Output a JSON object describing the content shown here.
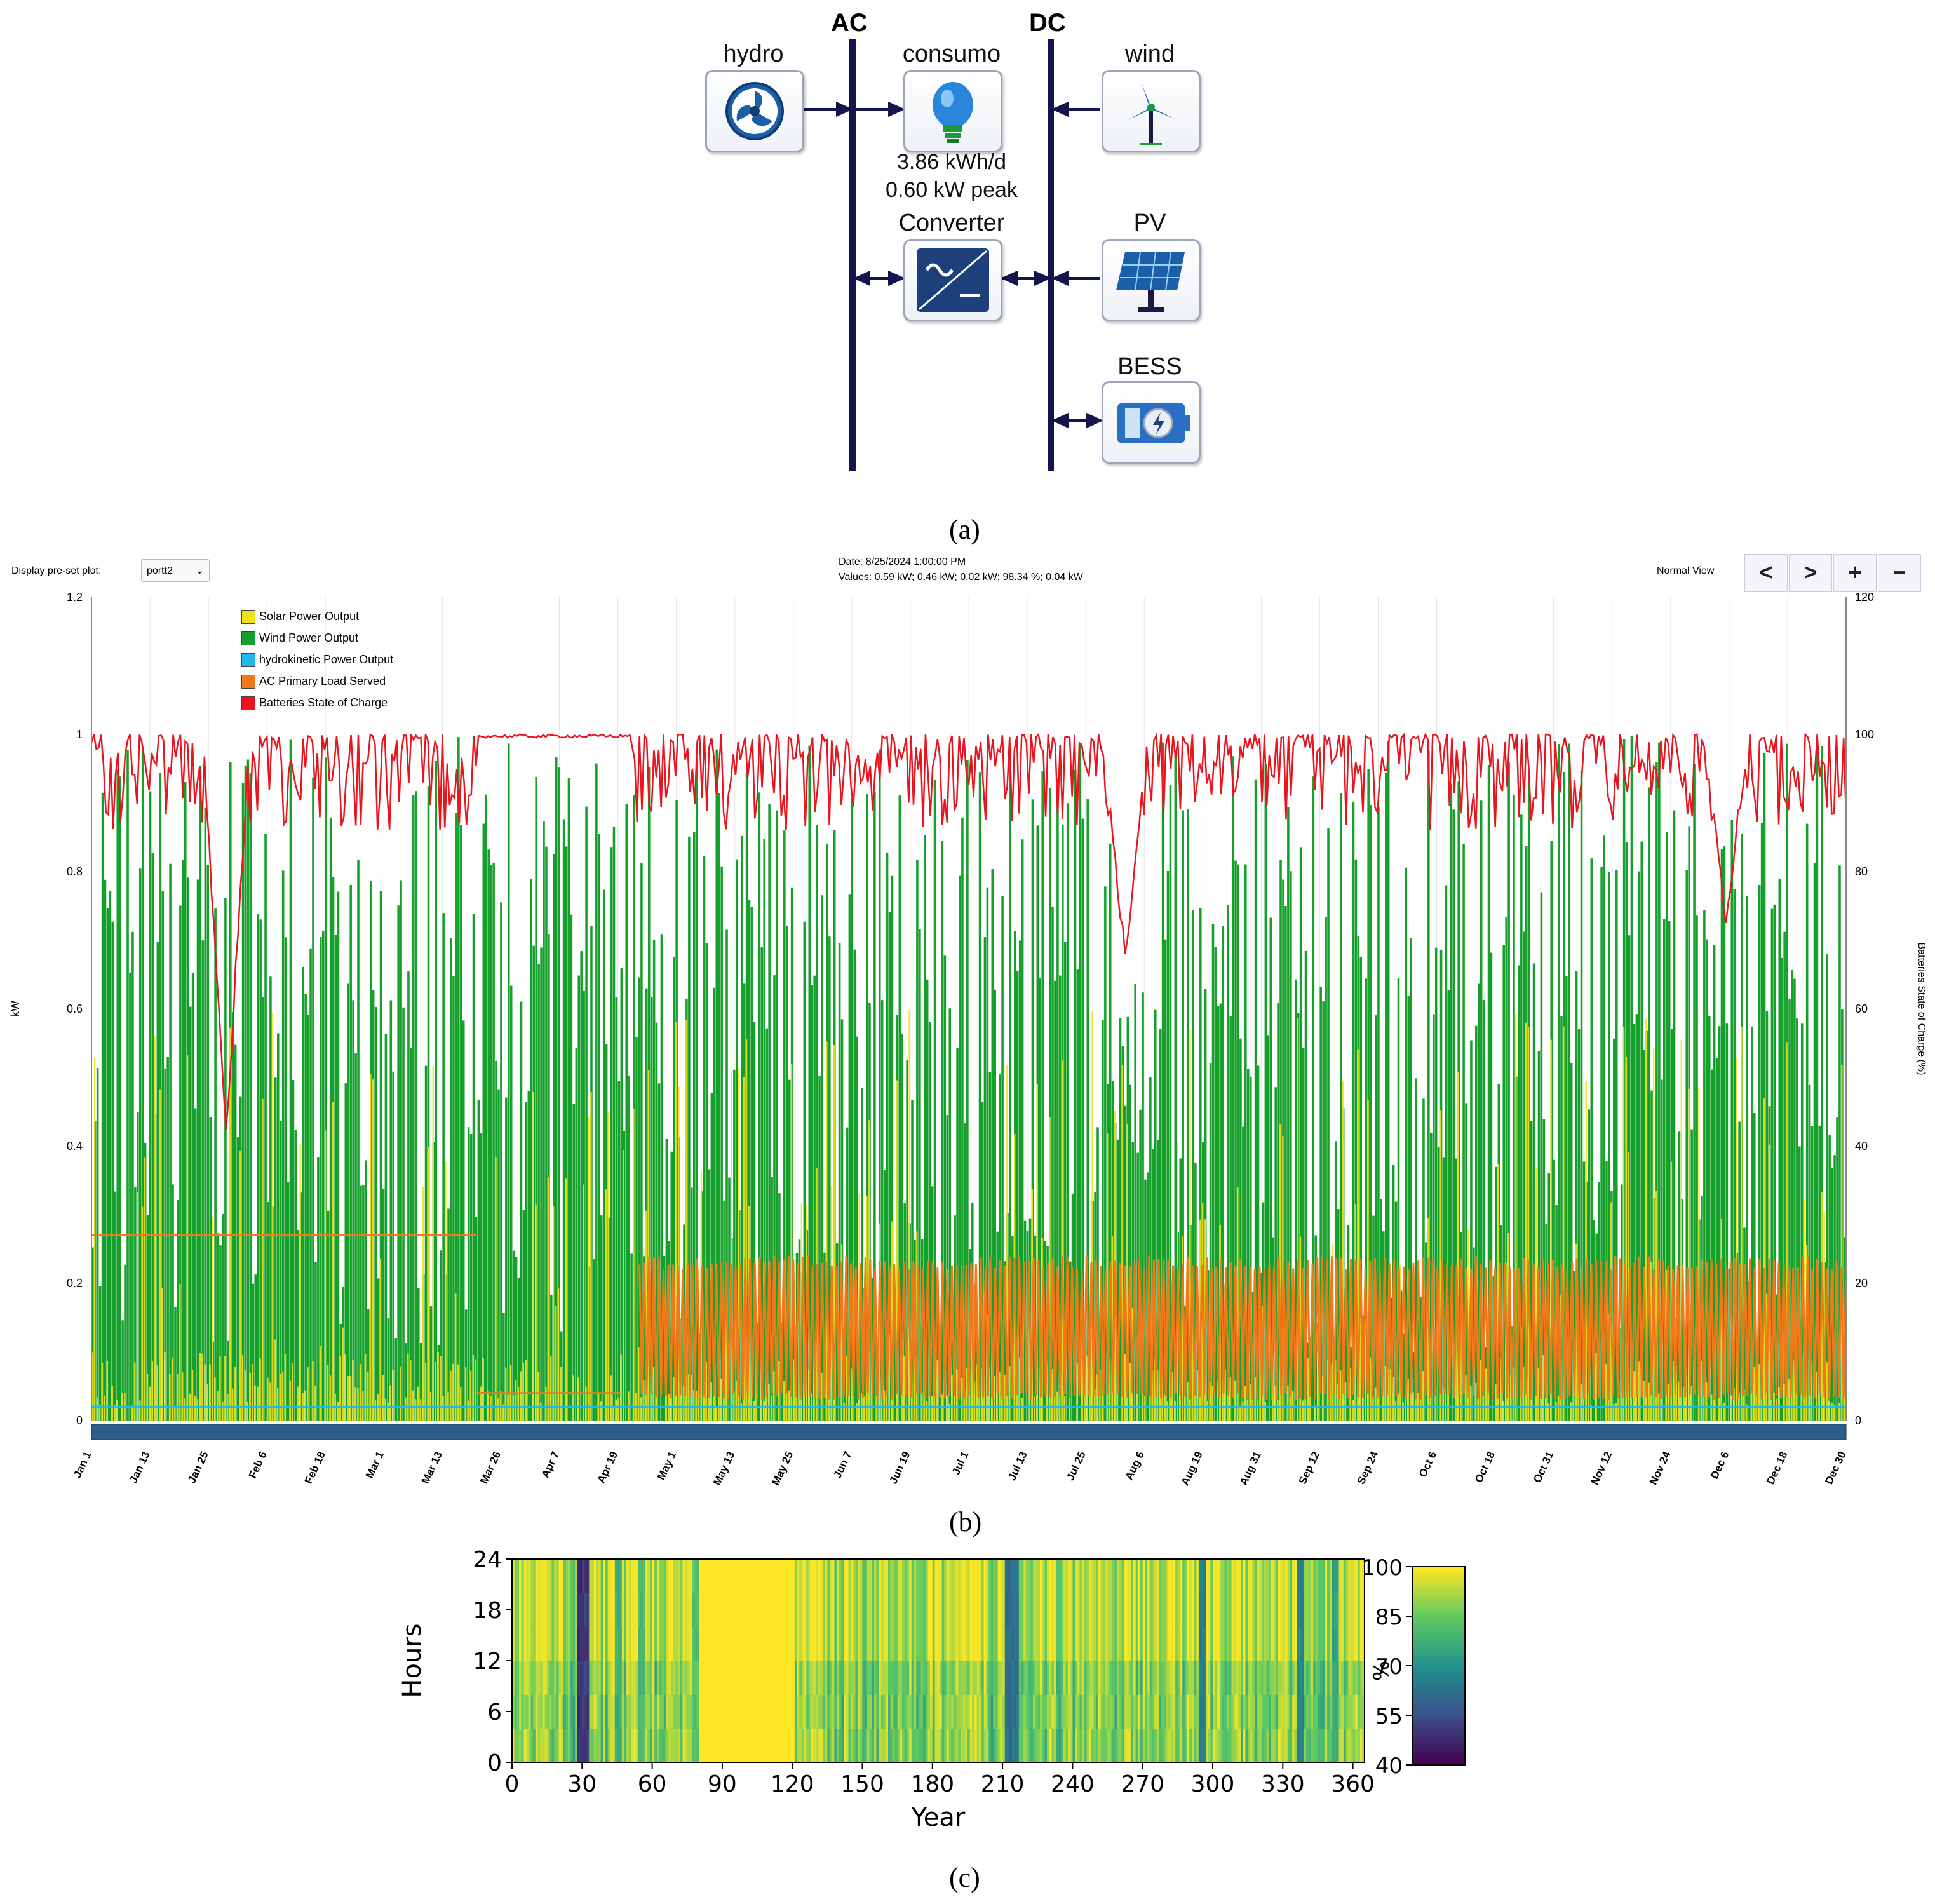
{
  "panel_a": {
    "bus_ac": "AC",
    "bus_dc": "DC",
    "components": {
      "hydro": "hydro",
      "consumo": "consumo",
      "wind": "wind",
      "converter": "Converter",
      "pv": "PV",
      "bess": "BESS"
    },
    "load_energy": "3.86 kWh/d",
    "load_peak": "0.60 kW peak",
    "caption": "(a)"
  },
  "panel_b": {
    "preset_label": "Display pre-set plot:",
    "preset_value": "portt2",
    "date_line": "Date: 8/25/2024 1:00:00 PM",
    "values_line": "Values: 0.59 kW; 0.46 kW; 0.02 kW; 98.34 %; 0.04 kW",
    "view_label": "Normal View",
    "buttons": [
      "<",
      ">",
      "+",
      "−"
    ],
    "caption": "(b)"
  },
  "panel_c": {
    "caption": "(c)"
  },
  "colors": {
    "solar": "#f2e21c",
    "wind": "#14a02a",
    "hydro": "#20b8e8",
    "load": "#f07a1a",
    "soc": "#e8141e",
    "bus": "#14144e",
    "scroll": "#2b5f8a"
  },
  "chart_data": [
    {
      "type": "line",
      "title": "",
      "xlabel": "",
      "ylabel": "kW",
      "ylabel_right": "Batteries State of Charge (%)",
      "ylim": [
        0,
        1.2
      ],
      "ylim_right": [
        0,
        120
      ],
      "yticks": [
        "0",
        "0.2",
        "0.4",
        "0.6",
        "0.8",
        "1",
        "1.2"
      ],
      "yticks_right": [
        "0",
        "20",
        "40",
        "60",
        "80",
        "100",
        "120"
      ],
      "x_categories": [
        "Jan 1",
        "Jan 13",
        "Jan 25",
        "Feb 6",
        "Feb 18",
        "Mar 1",
        "Mar 13",
        "Mar 26",
        "Apr 7",
        "Apr 19",
        "May 1",
        "May 13",
        "May 25",
        "Jun 7",
        "Jun 19",
        "Jul 1",
        "Jul 13",
        "Jul 25",
        "Aug 6",
        "Aug 19",
        "Aug 31",
        "Sep 12",
        "Sep 24",
        "Oct 6",
        "Oct 18",
        "Oct 31",
        "Nov 12",
        "Nov 24",
        "Dec 6",
        "Dec 18",
        "Dec 30"
      ],
      "legend": [
        "Solar Power Output",
        "Wind  Power Output",
        "hydrokinetic Power Output",
        "AC Primary Load Served",
        "Batteries State of Charge"
      ],
      "series": [
        {
          "name": "AC Primary Load Served",
          "unit": "kW",
          "segments": [
            {
              "from_day": 0,
              "to_day": 80,
              "value": 0.27
            },
            {
              "from_day": 80,
              "to_day": 110,
              "value": 0.04
            },
            {
              "from_day": 114,
              "to_day": 365,
              "min": 0.03,
              "max": 0.24
            }
          ]
        },
        {
          "name": "hydrokinetic Power Output",
          "unit": "kW",
          "value": 0.02
        },
        {
          "name": "Batteries State of Charge",
          "unit": "%",
          "approx_range": [
            40,
            100
          ],
          "notes_min_days": [
            {
              "day": 28,
              "value": 40
            },
            {
              "day": 215,
              "value": 66
            },
            {
              "day": 340,
              "value": 72
            }
          ]
        }
      ]
    },
    {
      "type": "heatmap",
      "xlabel": "Year",
      "ylabel": "Hours",
      "xticks": [
        "0",
        "30",
        "60",
        "90",
        "120",
        "150",
        "180",
        "210",
        "240",
        "270",
        "300",
        "330",
        "360"
      ],
      "yticks": [
        "0",
        "6",
        "12",
        "18",
        "24"
      ],
      "xlim": [
        0,
        365
      ],
      "ylim": [
        0,
        24
      ],
      "colorbar_label": "%",
      "colorbar_ticks": [
        "40",
        "55",
        "70",
        "85",
        "100"
      ],
      "colorbar_range": [
        40,
        100
      ],
      "low_soc_days": [
        {
          "day": 29,
          "value": 45
        },
        {
          "day": 31,
          "value": 48
        },
        {
          "day": 45,
          "value": 75
        },
        {
          "day": 55,
          "value": 78
        },
        {
          "day": 78,
          "value": 80
        },
        {
          "day": 212,
          "value": 58
        },
        {
          "day": 215,
          "value": 60
        },
        {
          "day": 295,
          "value": 62
        },
        {
          "day": 337,
          "value": 64
        },
        {
          "day": 352,
          "value": 72
        }
      ],
      "full_charge_range_days": [
        80,
        120
      ]
    }
  ]
}
